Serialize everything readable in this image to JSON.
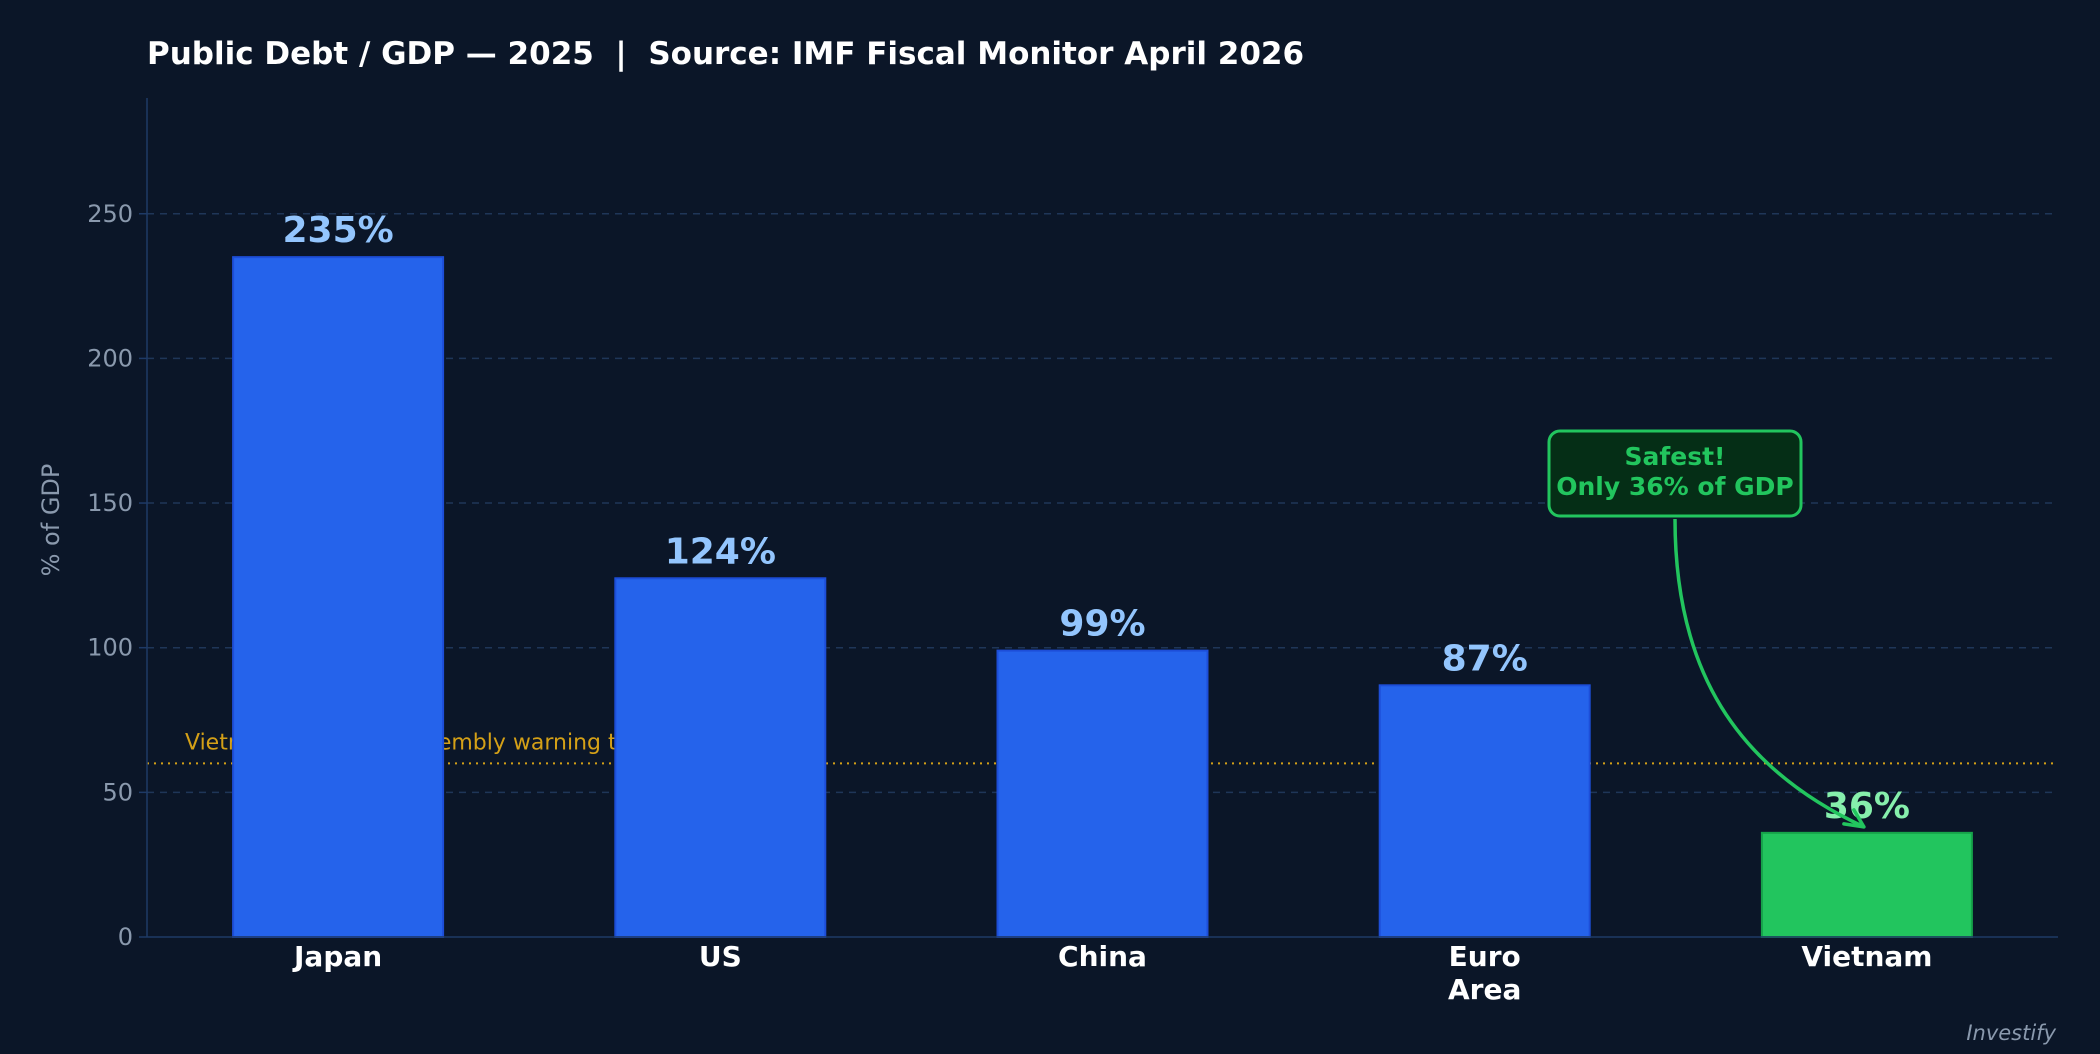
{
  "colors": {
    "background": "#0b1628",
    "bar": "#2563eb",
    "bar_edge": "#1d4ed8",
    "highlight_bar": "#22c55e",
    "highlight_edge": "#16a34a",
    "value_label": "#93c5fd",
    "highlight_label": "#86efac",
    "axis": "#1e3a66",
    "grid": "#1f3658",
    "tick_text": "#8a99ad",
    "category_text": "#ffffff",
    "title_text": "#ffffff",
    "threshold": "#d4a017",
    "callout_fill": "#052e16",
    "callout_text": "#22c55e",
    "watermark": "#8a99ad"
  },
  "chart_data": {
    "type": "bar",
    "title": "Public Debt / GDP — 2025  |  Source: IMF Fiscal Monitor April 2026",
    "xlabel": "",
    "ylabel": "% of GDP",
    "ylim": [
      0,
      290
    ],
    "yticks": [
      0,
      50,
      100,
      150,
      200,
      250
    ],
    "grid": true,
    "categories": [
      {
        "lines": [
          "Japan"
        ]
      },
      {
        "lines": [
          "US"
        ]
      },
      {
        "lines": [
          "China"
        ]
      },
      {
        "lines": [
          "Euro",
          "Area"
        ]
      },
      {
        "lines": [
          "Vietnam"
        ]
      }
    ],
    "values": [
      235,
      124,
      99,
      87,
      36
    ],
    "value_labels": [
      "235%",
      "124%",
      "99%",
      "87%",
      "36%"
    ],
    "highlight_index": 4,
    "threshold": {
      "value": 60,
      "label": "Vietnam's National Assembly warning threshold: 60%"
    },
    "annotation": {
      "lines": [
        "Safest!",
        "Only 36% of GDP"
      ],
      "target_index": 4
    }
  },
  "watermark": "Investify"
}
